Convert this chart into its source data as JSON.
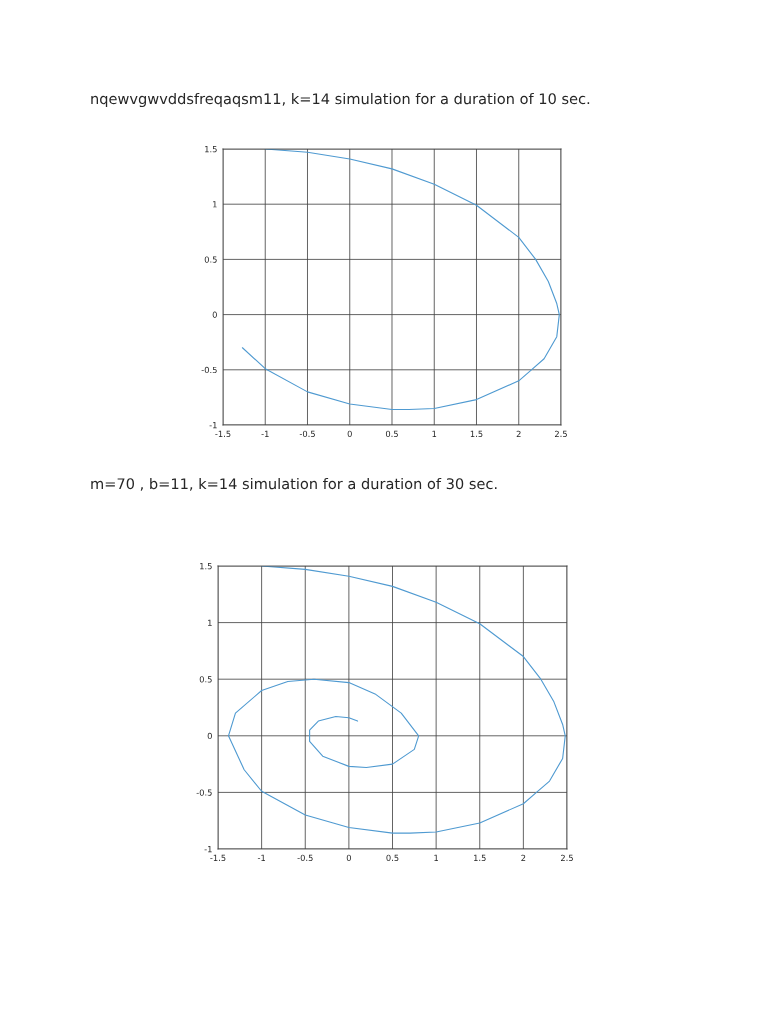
{
  "chart_data": [
    {
      "type": "line",
      "title": "nqewvgwvddsfreqaqsm11, k=14 simulation for a duration of 10 sec.",
      "xlim": [
        -1.5,
        2.5
      ],
      "ylim": [
        -1,
        1.5
      ],
      "xticks": [
        -1.5,
        -1,
        -0.5,
        0,
        0.5,
        1,
        1.5,
        2,
        2.5
      ],
      "yticks": [
        -1,
        -0.5,
        0,
        0.5,
        1,
        1.5
      ],
      "grid": true,
      "series": [
        {
          "color": "#4f9ad1",
          "x": [
            -1.0,
            -0.5,
            0,
            0.5,
            1.0,
            1.5,
            2.0,
            2.2,
            2.35,
            2.45,
            2.48,
            2.45,
            2.3,
            2.15,
            2.0,
            1.5,
            1.0,
            0.7,
            0.5,
            0,
            -0.5,
            -1.0,
            -1.27
          ],
          "values": [
            1.5,
            1.47,
            1.41,
            1.32,
            1.18,
            0.99,
            0.7,
            0.5,
            0.3,
            0.1,
            0,
            -0.2,
            -0.4,
            -0.5,
            -0.6,
            -0.77,
            -0.85,
            -0.86,
            -0.86,
            -0.81,
            -0.7,
            -0.49,
            -0.3
          ]
        }
      ]
    },
    {
      "type": "line",
      "title": "m=70 , b=11, k=14 simulation for a duration of 30 sec.",
      "xlim": [
        -1.5,
        2.5
      ],
      "ylim": [
        -1,
        1.5
      ],
      "xticks": [
        -1.5,
        -1,
        -0.5,
        0,
        0.5,
        1,
        1.5,
        2,
        2.5
      ],
      "yticks": [
        -1,
        -0.5,
        0,
        0.5,
        1,
        1.5
      ],
      "grid": true,
      "series": [
        {
          "color": "#4f9ad1",
          "x": [
            -1.0,
            -0.5,
            0,
            0.5,
            1.0,
            1.5,
            2.0,
            2.2,
            2.35,
            2.45,
            2.48,
            2.45,
            2.3,
            2.15,
            2.0,
            1.5,
            1.0,
            0.7,
            0.5,
            0,
            -0.5,
            -1.0,
            -1.2,
            -1.38,
            -1.3,
            -1.0,
            -0.7,
            -0.4,
            0,
            0.3,
            0.6,
            0.8,
            0.75,
            0.5,
            0.2,
            0,
            -0.3,
            -0.45,
            -0.45,
            -0.35,
            -0.15,
            0,
            0.1
          ],
          "values": [
            1.5,
            1.47,
            1.41,
            1.32,
            1.18,
            0.99,
            0.7,
            0.5,
            0.3,
            0.1,
            0,
            -0.2,
            -0.4,
            -0.5,
            -0.6,
            -0.77,
            -0.85,
            -0.86,
            -0.86,
            -0.81,
            -0.7,
            -0.49,
            -0.3,
            0,
            0.2,
            0.4,
            0.48,
            0.5,
            0.47,
            0.37,
            0.2,
            0,
            -0.12,
            -0.25,
            -0.28,
            -0.27,
            -0.18,
            -0.05,
            0.05,
            0.13,
            0.17,
            0.16,
            0.13
          ]
        }
      ]
    }
  ]
}
